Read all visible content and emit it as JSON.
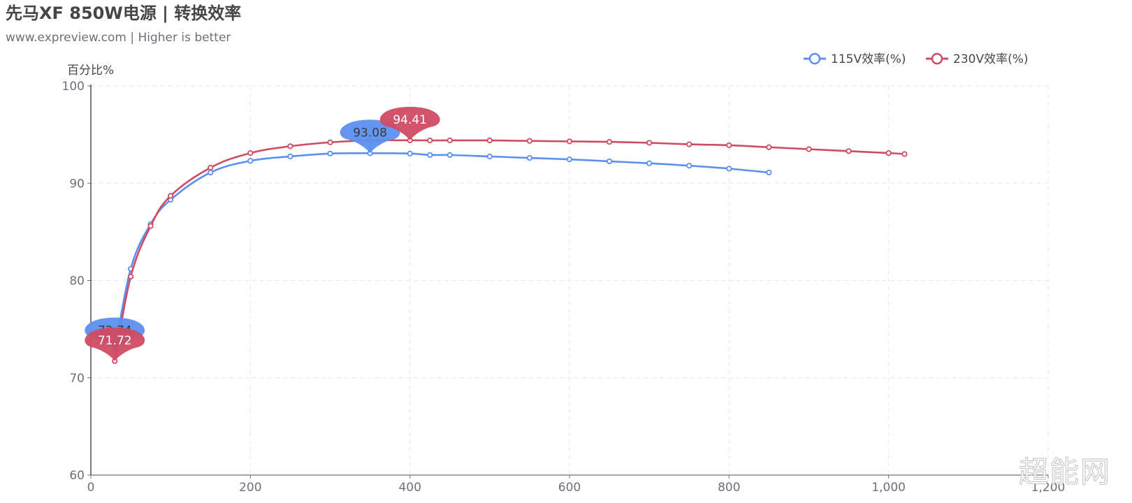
{
  "title": "先马XF 850W电源 | 转换效率",
  "subtitle": "www.expreview.com | Higher is better",
  "watermark": "超能网",
  "chart_data": {
    "type": "line",
    "title": "先马XF 850W电源 | 转换效率",
    "subtitle": "www.expreview.com | Higher is better",
    "ylabel": "百分比%",
    "xlabel": "",
    "xlim": [
      0,
      1200
    ],
    "ylim": [
      60,
      100
    ],
    "x_ticks": [
      0,
      200,
      400,
      600,
      800,
      1000,
      1200
    ],
    "x_tick_labels": [
      "0",
      "200",
      "400",
      "600",
      "800",
      "1,000",
      "1,200"
    ],
    "y_ticks": [
      60,
      70,
      80,
      90,
      100
    ],
    "y_tick_labels": [
      "60",
      "70",
      "80",
      "90",
      "100"
    ],
    "grid": true,
    "smooth": true,
    "legend_position": "top-right",
    "series": [
      {
        "name": "115V效率(%)",
        "color": "#5b8ff0",
        "points": [
          [
            30,
            72.74
          ],
          [
            50,
            81.2
          ],
          [
            75,
            85.8
          ],
          [
            100,
            88.3
          ],
          [
            150,
            91.1
          ],
          [
            200,
            92.3
          ],
          [
            250,
            92.75
          ],
          [
            300,
            93.05
          ],
          [
            350,
            93.08
          ],
          [
            400,
            93.05
          ],
          [
            425,
            92.9
          ],
          [
            450,
            92.9
          ],
          [
            500,
            92.75
          ],
          [
            550,
            92.6
          ],
          [
            600,
            92.45
          ],
          [
            650,
            92.25
          ],
          [
            700,
            92.05
          ],
          [
            750,
            91.8
          ],
          [
            800,
            91.5
          ],
          [
            850,
            91.1
          ]
        ],
        "markers": [
          {
            "type": "min",
            "x": 30,
            "y": 72.74,
            "label": "72.74"
          },
          {
            "type": "max",
            "x": 350,
            "y": 93.08,
            "label": "93.08"
          }
        ]
      },
      {
        "name": "230V效率(%)",
        "color": "#cf4b63",
        "points": [
          [
            30,
            71.72
          ],
          [
            50,
            80.4
          ],
          [
            75,
            85.6
          ],
          [
            100,
            88.7
          ],
          [
            150,
            91.6
          ],
          [
            200,
            93.1
          ],
          [
            250,
            93.8
          ],
          [
            300,
            94.2
          ],
          [
            350,
            94.4
          ],
          [
            400,
            94.41
          ],
          [
            425,
            94.4
          ],
          [
            450,
            94.4
          ],
          [
            500,
            94.4
          ],
          [
            550,
            94.35
          ],
          [
            600,
            94.3
          ],
          [
            650,
            94.25
          ],
          [
            700,
            94.15
          ],
          [
            750,
            94.0
          ],
          [
            800,
            93.9
          ],
          [
            850,
            93.7
          ],
          [
            900,
            93.5
          ],
          [
            950,
            93.3
          ],
          [
            1000,
            93.1
          ],
          [
            1020,
            93.0
          ]
        ],
        "markers": [
          {
            "type": "min",
            "x": 30,
            "y": 71.72,
            "label": "71.72"
          },
          {
            "type": "max",
            "x": 400,
            "y": 94.41,
            "label": "94.41"
          }
        ]
      }
    ]
  }
}
